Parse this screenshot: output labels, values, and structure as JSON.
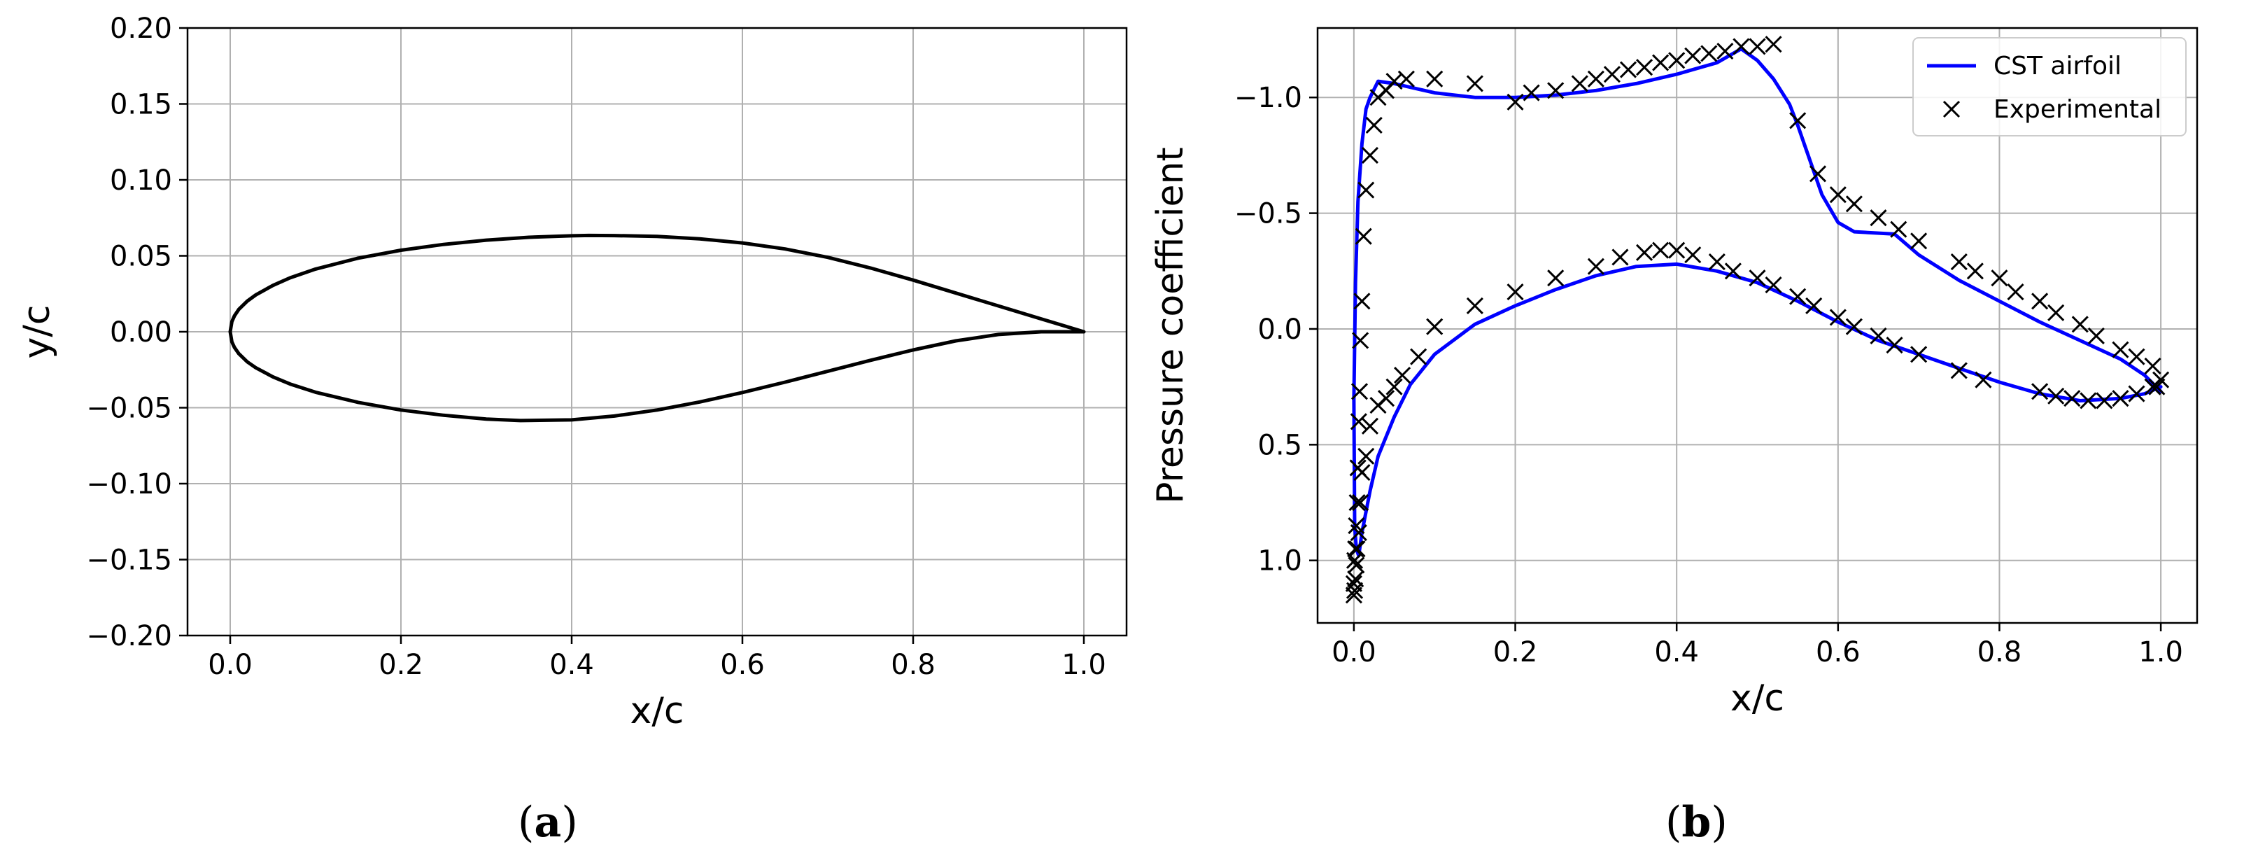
{
  "chart_data": [
    {
      "panel": "(a)",
      "panel_letter": "a",
      "type": "line",
      "title": "",
      "xlabel": "x/c",
      "ylabel": "y/c",
      "xlim": [
        -0.05,
        1.05
      ],
      "ylim": [
        -0.2,
        0.2
      ],
      "xticks": [
        0.0,
        0.2,
        0.4,
        0.6,
        0.8,
        1.0
      ],
      "yticks": [
        -0.2,
        -0.15,
        -0.1,
        -0.05,
        0.0,
        0.05,
        0.1,
        0.15,
        0.2
      ],
      "xtick_labels": [
        "0.0",
        "0.2",
        "0.4",
        "0.6",
        "0.8",
        "1.0"
      ],
      "ytick_labels": [
        "−0.20",
        "−0.15",
        "−0.10",
        "−0.05",
        "0.00",
        "0.05",
        "0.10",
        "0.15",
        "0.20"
      ],
      "grid": true,
      "line_color": "#000000",
      "series": [
        {
          "x": [
            1.0,
            0.95,
            0.9,
            0.85,
            0.8,
            0.75,
            0.7,
            0.65,
            0.6,
            0.55,
            0.5,
            0.45,
            0.42,
            0.4,
            0.35,
            0.3,
            0.25,
            0.2,
            0.15,
            0.1,
            0.07,
            0.05,
            0.03,
            0.02,
            0.01,
            0.005,
            0.002,
            0.0,
            0.002,
            0.005,
            0.01,
            0.02,
            0.03,
            0.05,
            0.07,
            0.1,
            0.15,
            0.2,
            0.25,
            0.3,
            0.34,
            0.4,
            0.45,
            0.5,
            0.55,
            0.6,
            0.65,
            0.7,
            0.75,
            0.8,
            0.85,
            0.9,
            0.95,
            1.0
          ],
          "y": [
            0.0,
            0.0085,
            0.017,
            0.0255,
            0.034,
            0.042,
            0.049,
            0.0545,
            0.0585,
            0.0612,
            0.0628,
            0.0633,
            0.0634,
            0.0632,
            0.0622,
            0.0603,
            0.0575,
            0.0537,
            0.0485,
            0.0413,
            0.0355,
            0.0305,
            0.0243,
            0.0202,
            0.0147,
            0.0105,
            0.0067,
            0.0,
            -0.0067,
            -0.0103,
            -0.0144,
            -0.0198,
            -0.0237,
            -0.0297,
            -0.0344,
            -0.0398,
            -0.0465,
            -0.0515,
            -0.055,
            -0.0575,
            -0.0585,
            -0.058,
            -0.0555,
            -0.0515,
            -0.0462,
            -0.04,
            -0.0332,
            -0.026,
            -0.0188,
            -0.012,
            -0.006,
            -0.0018,
            0.0,
            0.0
          ]
        }
      ]
    },
    {
      "panel": "(b)",
      "panel_letter": "b",
      "type": "line",
      "title": "",
      "xlabel": "x/c",
      "ylabel": "Pressure coefficient",
      "xlim": [
        -0.045,
        1.045
      ],
      "ylim": [
        1.27,
        -1.3
      ],
      "y_inverted": true,
      "xticks": [
        0.0,
        0.2,
        0.4,
        0.6,
        0.8,
        1.0
      ],
      "yticks": [
        -1.0,
        -0.5,
        0.0,
        0.5,
        1.0
      ],
      "xtick_labels": [
        "0.0",
        "0.2",
        "0.4",
        "0.6",
        "0.8",
        "1.0"
      ],
      "ytick_labels": [
        "−1.0",
        "−0.5",
        "0.0",
        "0.5",
        "1.0"
      ],
      "grid": true,
      "legend_position": "top-right",
      "series": [
        {
          "name": "CST airfoil",
          "type": "line",
          "color": "#0000ff",
          "x": [
            1.0,
            0.98,
            0.95,
            0.9,
            0.85,
            0.8,
            0.75,
            0.7,
            0.67,
            0.62,
            0.6,
            0.58,
            0.56,
            0.55,
            0.54,
            0.52,
            0.5,
            0.48,
            0.45,
            0.4,
            0.35,
            0.3,
            0.25,
            0.2,
            0.15,
            0.1,
            0.05,
            0.03,
            0.02,
            0.015,
            0.01,
            0.005,
            0.002,
            0.0,
            0.001,
            0.003,
            0.006,
            0.01,
            0.02,
            0.03,
            0.05,
            0.07,
            0.1,
            0.15,
            0.2,
            0.25,
            0.3,
            0.35,
            0.4,
            0.45,
            0.5,
            0.55,
            0.6,
            0.65,
            0.7,
            0.75,
            0.8,
            0.85,
            0.9,
            0.95,
            0.98,
            1.0
          ],
          "y": [
            0.27,
            0.2,
            0.13,
            0.05,
            -0.03,
            -0.12,
            -0.21,
            -0.32,
            -0.41,
            -0.42,
            -0.46,
            -0.58,
            -0.78,
            -0.88,
            -0.97,
            -1.08,
            -1.16,
            -1.21,
            -1.15,
            -1.1,
            -1.06,
            -1.03,
            -1.01,
            -1.0,
            -1.0,
            -1.02,
            -1.06,
            -1.07,
            -1.0,
            -0.95,
            -0.8,
            -0.55,
            -0.2,
            0.3,
            0.85,
            0.95,
            0.98,
            0.88,
            0.7,
            0.55,
            0.38,
            0.24,
            0.11,
            -0.02,
            -0.1,
            -0.17,
            -0.23,
            -0.27,
            -0.28,
            -0.25,
            -0.2,
            -0.12,
            -0.03,
            0.05,
            0.11,
            0.17,
            0.23,
            0.28,
            0.31,
            0.3,
            0.28,
            0.25
          ]
        },
        {
          "name": "Experimental",
          "type": "scatter",
          "marker": "x",
          "color": "#000000",
          "x": [
            0.0,
            0.001,
            0.002,
            0.003,
            0.004,
            0.005,
            0.006,
            0.007,
            0.008,
            0.01,
            0.012,
            0.015,
            0.02,
            0.025,
            0.03,
            0.04,
            0.05,
            0.065,
            0.1,
            0.15,
            0.2,
            0.22,
            0.25,
            0.28,
            0.3,
            0.32,
            0.34,
            0.36,
            0.38,
            0.4,
            0.42,
            0.44,
            0.46,
            0.48,
            0.5,
            0.52,
            0.55,
            0.575,
            0.6,
            0.62,
            0.65,
            0.675,
            0.7,
            0.75,
            0.77,
            0.8,
            0.82,
            0.85,
            0.87,
            0.9,
            0.92,
            0.95,
            0.97,
            0.99,
            0.995,
            0.0,
            0.001,
            0.002,
            0.003,
            0.004,
            0.006,
            0.008,
            0.01,
            0.015,
            0.02,
            0.03,
            0.04,
            0.05,
            0.06,
            0.08,
            0.1,
            0.15,
            0.2,
            0.25,
            0.3,
            0.33,
            0.36,
            0.38,
            0.4,
            0.42,
            0.45,
            0.47,
            0.5,
            0.52,
            0.55,
            0.57,
            0.6,
            0.62,
            0.65,
            0.67,
            0.7,
            0.75,
            0.78,
            0.85,
            0.87,
            0.89,
            0.91,
            0.93,
            0.95,
            0.97,
            0.99,
            1.0
          ],
          "y": [
            1.1,
            1.0,
            0.95,
            0.85,
            0.75,
            0.6,
            0.4,
            0.27,
            0.05,
            -0.12,
            -0.4,
            -0.6,
            -0.75,
            -0.88,
            -1.0,
            -1.03,
            -1.07,
            -1.08,
            -1.08,
            -1.06,
            -0.98,
            -1.02,
            -1.03,
            -1.06,
            -1.08,
            -1.1,
            -1.12,
            -1.13,
            -1.15,
            -1.16,
            -1.18,
            -1.19,
            -1.2,
            -1.22,
            -1.22,
            -1.23,
            -0.9,
            -0.67,
            -0.58,
            -0.54,
            -0.48,
            -0.43,
            -0.38,
            -0.29,
            -0.25,
            -0.22,
            -0.16,
            -0.12,
            -0.07,
            -0.02,
            0.03,
            0.09,
            0.12,
            0.16,
            0.25,
            1.15,
            1.13,
            1.08,
            1.02,
            0.95,
            0.88,
            0.75,
            0.62,
            0.55,
            0.42,
            0.33,
            0.3,
            0.25,
            0.2,
            0.12,
            -0.01,
            -0.1,
            -0.16,
            -0.22,
            -0.27,
            -0.31,
            -0.33,
            -0.34,
            -0.34,
            -0.32,
            -0.29,
            -0.25,
            -0.22,
            -0.19,
            -0.14,
            -0.1,
            -0.05,
            -0.01,
            0.03,
            0.07,
            0.11,
            0.18,
            0.22,
            0.27,
            0.29,
            0.3,
            0.31,
            0.31,
            0.3,
            0.28,
            0.25,
            0.22
          ]
        }
      ]
    }
  ]
}
